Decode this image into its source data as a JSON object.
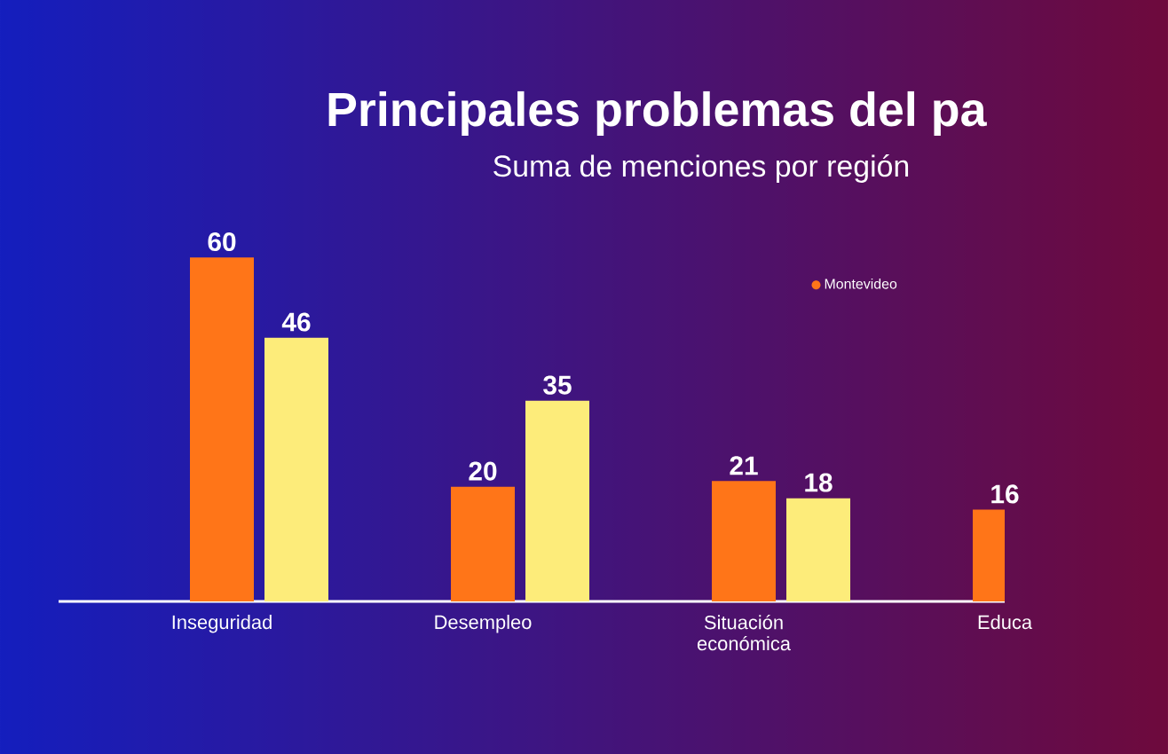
{
  "chart_data": {
    "type": "bar",
    "title": "Principales problemas del pa",
    "subtitle": "Suma de menciones por región",
    "categories": [
      "Inseguridad",
      "Desempleo",
      "Situación económica",
      "Educa"
    ],
    "series": [
      {
        "name": "Montevideo",
        "color": "#ff7518",
        "values": [
          60,
          20,
          21,
          16
        ]
      },
      {
        "color": "#fdec7a",
        "values": [
          46,
          35,
          18,
          null
        ]
      }
    ],
    "data_labels": true,
    "legend": "top right"
  }
}
